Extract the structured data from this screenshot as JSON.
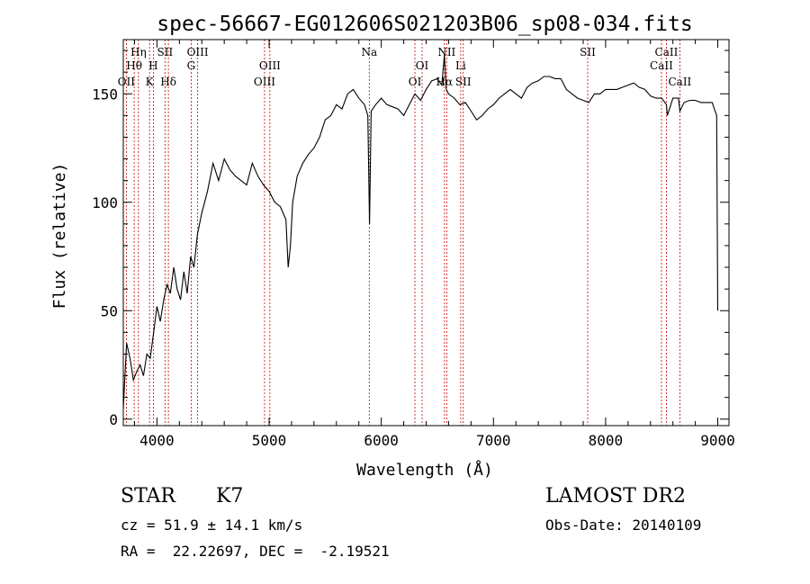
{
  "chart_data": {
    "type": "line",
    "title": "spec-56667-EG012606S021203B06_sp08-034.fits",
    "xlabel": "Wavelength (Å)",
    "ylabel": "Flux (relative)",
    "xlim": [
      3700,
      9100
    ],
    "ylim": [
      -3,
      175
    ],
    "xticks": [
      4000,
      5000,
      6000,
      7000,
      8000,
      9000
    ],
    "yticks": [
      0,
      50,
      100,
      150
    ],
    "series": [
      {
        "x": [
          3700,
          3730,
          3760,
          3790,
          3820,
          3850,
          3880,
          3910,
          3940,
          3970,
          4000,
          4030,
          4060,
          4090,
          4120,
          4150,
          4180,
          4210,
          4240,
          4270,
          4300,
          4330,
          4360,
          4400,
          4450,
          4500,
          4550,
          4600,
          4650,
          4700,
          4750,
          4800,
          4850,
          4900,
          4950,
          5000,
          5050,
          5100,
          5150,
          5170,
          5190,
          5210,
          5250,
          5300,
          5350,
          5400,
          5450,
          5500,
          5550,
          5600,
          5650,
          5700,
          5750,
          5800,
          5850,
          5880,
          5895,
          5910,
          5950,
          6000,
          6050,
          6100,
          6150,
          6200,
          6250,
          6300,
          6350,
          6400,
          6450,
          6500,
          6540,
          6563,
          6580,
          6600,
          6650,
          6700,
          6750,
          6800,
          6850,
          6900,
          6950,
          7000,
          7050,
          7100,
          7150,
          7200,
          7250,
          7300,
          7350,
          7400,
          7450,
          7500,
          7550,
          7600,
          7650,
          7700,
          7750,
          7800,
          7850,
          7900,
          7950,
          8000,
          8050,
          8100,
          8150,
          8200,
          8250,
          8300,
          8350,
          8400,
          8450,
          8500,
          8542,
          8550,
          8600,
          8650,
          8662,
          8700,
          8750,
          8800,
          8850,
          8900,
          8950,
          8990,
          9000
        ],
        "values": [
          5,
          35,
          28,
          18,
          22,
          25,
          20,
          30,
          28,
          40,
          52,
          45,
          55,
          62,
          58,
          70,
          60,
          55,
          68,
          58,
          75,
          70,
          85,
          95,
          105,
          118,
          110,
          120,
          115,
          112,
          110,
          108,
          118,
          112,
          108,
          105,
          100,
          98,
          92,
          70,
          80,
          100,
          112,
          118,
          122,
          125,
          130,
          138,
          140,
          145,
          143,
          150,
          152,
          148,
          145,
          140,
          90,
          142,
          145,
          148,
          145,
          144,
          143,
          140,
          145,
          150,
          147,
          152,
          156,
          157,
          154,
          168,
          152,
          150,
          148,
          145,
          146,
          142,
          138,
          140,
          143,
          145,
          148,
          150,
          152,
          150,
          148,
          153,
          155,
          156,
          158,
          158,
          157,
          157,
          152,
          150,
          148,
          147,
          146,
          150,
          150,
          152,
          152,
          152,
          153,
          154,
          155,
          153,
          152,
          149,
          148,
          148,
          145,
          140,
          148,
          148,
          142,
          146,
          147,
          147,
          146,
          146,
          146,
          140,
          50
        ]
      }
    ],
    "spectral_lines": [
      {
        "label": "Hη",
        "x": 3835,
        "row": 1
      },
      {
        "label": "Hθ",
        "x": 3797,
        "row": 2
      },
      {
        "label": "OII",
        "x": 3727,
        "row": 3
      },
      {
        "label": "H",
        "x": 3968,
        "row": 2
      },
      {
        "label": "K",
        "x": 3934,
        "row": 3
      },
      {
        "label": "SII",
        "x": 4072,
        "row": 1
      },
      {
        "label": "Hδ",
        "x": 4102,
        "row": 3
      },
      {
        "label": "OIII",
        "x": 4363,
        "row": 1
      },
      {
        "label": "G",
        "x": 4305,
        "row": 2
      },
      {
        "label": "OIII",
        "x": 5007,
        "row": 2
      },
      {
        "label": "OIII",
        "x": 4959,
        "row": 3
      },
      {
        "label": "Na",
        "x": 5893,
        "row": 1
      },
      {
        "label": "OI",
        "x": 6364,
        "row": 2
      },
      {
        "label": "OI",
        "x": 6300,
        "row": 3
      },
      {
        "label": "NII",
        "x": 6583,
        "row": 1
      },
      {
        "label": "Hα",
        "x": 6563,
        "row": 3
      },
      {
        "label": "Li",
        "x": 6708,
        "row": 2
      },
      {
        "label": "SII",
        "x": 6731,
        "row": 3
      },
      {
        "label": "SII",
        "x": 7840,
        "row": 1
      },
      {
        "label": "CaII",
        "x": 8542,
        "row": 1
      },
      {
        "label": "CaII",
        "x": 8498,
        "row": 2
      },
      {
        "label": "CaII",
        "x": 8662,
        "row": 3
      }
    ]
  },
  "info": {
    "object_type": "STAR",
    "subclass": "K7",
    "survey": "LAMOST DR2",
    "cz": "cz = 51.9 ± 14.1 km/s",
    "obs_date": "Obs-Date: 20140109",
    "coords": "RA =  22.22697, DEC =  -2.19521"
  },
  "colors": {
    "spectrum": "#000000",
    "line_marker": "#cc0000",
    "axes": "#000000"
  }
}
